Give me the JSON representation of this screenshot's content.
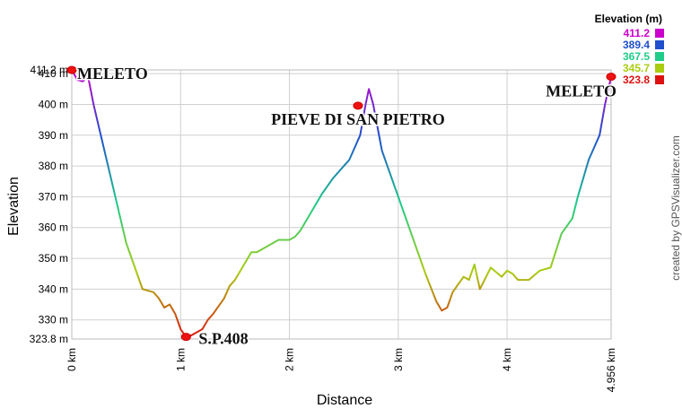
{
  "chart_data": {
    "type": "line",
    "x_label": "Distance",
    "y_label": "Elevation",
    "watermark": "created by GPSVisualizer.com",
    "x": [
      0,
      0.05,
      0.1,
      0.15,
      0.2,
      0.3,
      0.4,
      0.5,
      0.6,
      0.65,
      0.75,
      0.8,
      0.85,
      0.9,
      0.95,
      1.0,
      1.05,
      1.1,
      1.2,
      1.25,
      1.3,
      1.4,
      1.45,
      1.5,
      1.6,
      1.65,
      1.7,
      1.8,
      1.9,
      2.0,
      2.05,
      2.1,
      2.2,
      2.3,
      2.4,
      2.5,
      2.55,
      2.6,
      2.65,
      2.7,
      2.73,
      2.77,
      2.85,
      2.95,
      3.05,
      3.15,
      3.25,
      3.35,
      3.4,
      3.45,
      3.5,
      3.6,
      3.65,
      3.7,
      3.75,
      3.85,
      3.95,
      4.0,
      4.05,
      4.1,
      4.2,
      4.3,
      4.4,
      4.5,
      4.6,
      4.65,
      4.7,
      4.75,
      4.8,
      4.85,
      4.9,
      4.956
    ],
    "values": [
      411.2,
      408,
      407.5,
      409,
      400,
      385,
      370,
      355,
      345,
      340,
      339,
      337,
      334,
      335,
      332,
      327,
      324.5,
      325,
      327,
      330,
      332,
      337,
      341,
      343,
      349,
      352,
      352,
      354,
      356,
      356,
      357,
      359,
      365,
      371,
      376,
      380,
      382,
      386,
      390,
      400,
      405,
      400,
      385,
      375,
      365,
      355,
      345,
      336,
      333,
      334,
      339,
      344,
      343,
      348,
      340,
      347,
      344,
      346,
      345,
      343,
      343,
      346,
      347,
      358,
      363,
      370,
      376,
      382,
      386,
      390,
      400,
      409
    ],
    "xlim": [
      0,
      4.956
    ],
    "ylim": [
      323.8,
      411.2
    ],
    "xticks": [
      {
        "value": 0,
        "label": "0 km"
      },
      {
        "value": 1,
        "label": "1 km"
      },
      {
        "value": 2,
        "label": "2 km"
      },
      {
        "value": 3,
        "label": "3 km"
      },
      {
        "value": 4,
        "label": "4 km"
      },
      {
        "value": 4.956,
        "label": "4.956 km"
      }
    ],
    "yticks": [
      {
        "value": 323.8,
        "label": "323.8 m"
      },
      {
        "value": 330,
        "label": "330 m"
      },
      {
        "value": 340,
        "label": "340 m"
      },
      {
        "value": 350,
        "label": "350 m"
      },
      {
        "value": 360,
        "label": "360 m"
      },
      {
        "value": 370,
        "label": "370 m"
      },
      {
        "value": 380,
        "label": "380 m"
      },
      {
        "value": 390,
        "label": "390 m"
      },
      {
        "value": 400,
        "label": "400 m"
      },
      {
        "value": 410,
        "label": "410 m"
      },
      {
        "value": 411.2,
        "label": "411.2 m"
      }
    ],
    "grid": true,
    "legend": {
      "title": "Elevation (m)",
      "items": [
        {
          "value": 411.2,
          "color": "#cc00cc"
        },
        {
          "value": 389.4,
          "color": "#1f4fcc"
        },
        {
          "value": 367.5,
          "color": "#1ecc88"
        },
        {
          "value": 345.7,
          "color": "#aacc11"
        },
        {
          "value": 323.8,
          "color": "#dd1111"
        }
      ]
    },
    "annotations": [
      {
        "text": "MELETO",
        "x": 0,
        "y": 411.2
      },
      {
        "text": "S.P.408",
        "x": 1.05,
        "y": 324.5
      },
      {
        "text": "PIEVE DI SAN PIETRO",
        "x": 2.63,
        "y": 399.6
      },
      {
        "text": "MELETO",
        "x": 4.956,
        "y": 409
      }
    ]
  }
}
